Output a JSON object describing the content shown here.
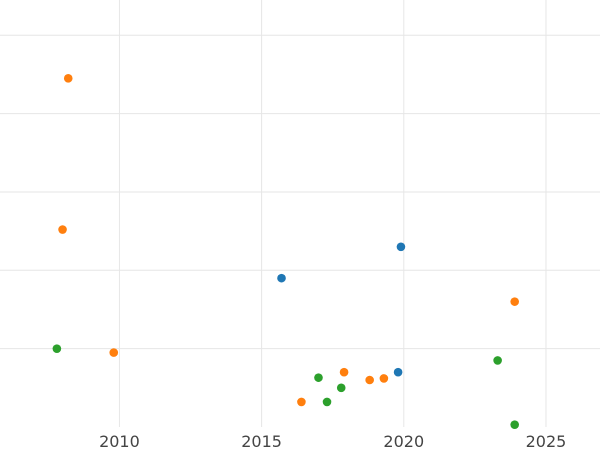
{
  "chart_data": {
    "type": "scatter",
    "title": "",
    "xlabel": "",
    "ylabel": "",
    "xlim": [
      2005.8,
      2026.9
    ],
    "ylim": [
      0.0,
      5.45
    ],
    "x_ticks": [
      2010,
      2015,
      2020,
      2025
    ],
    "y_gridlines": [
      1.0,
      2.0,
      3.0,
      4.0,
      5.0
    ],
    "grid": true,
    "legend": "none",
    "series": [
      {
        "color": "#1f77b4",
        "points": [
          {
            "x": 2015.7,
            "y": 1.9
          },
          {
            "x": 2019.9,
            "y": 2.3
          },
          {
            "x": 2019.8,
            "y": 0.7
          }
        ]
      },
      {
        "color": "#ff7f0e",
        "points": [
          {
            "x": 2008.2,
            "y": 4.45
          },
          {
            "x": 2008.0,
            "y": 2.52
          },
          {
            "x": 2009.8,
            "y": 0.95
          },
          {
            "x": 2016.4,
            "y": 0.32
          },
          {
            "x": 2017.9,
            "y": 0.7
          },
          {
            "x": 2018.8,
            "y": 0.6
          },
          {
            "x": 2019.3,
            "y": 0.62
          },
          {
            "x": 2023.9,
            "y": 1.6
          }
        ]
      },
      {
        "color": "#2ca02c",
        "points": [
          {
            "x": 2007.8,
            "y": 1.0
          },
          {
            "x": 2017.0,
            "y": 0.63
          },
          {
            "x": 2017.3,
            "y": 0.32
          },
          {
            "x": 2017.8,
            "y": 0.5
          },
          {
            "x": 2023.3,
            "y": 0.85
          },
          {
            "x": 2023.9,
            "y": 0.03
          }
        ]
      }
    ]
  }
}
